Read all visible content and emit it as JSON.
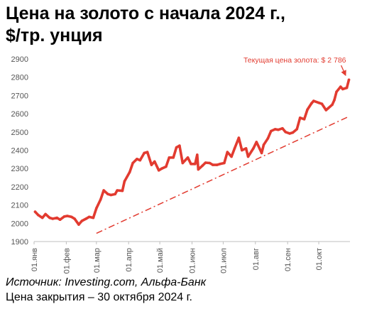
{
  "title_line1": "Цена на золото с начала 2024 г.,",
  "title_line2": "$/тр. унция",
  "source": "Источник: Investing.com, Альфа-Банк",
  "close_date": "Цена закрытия – 30 октября 2024 г.",
  "colors": {
    "line": "#e23b30",
    "trend": "#e23b30",
    "annotation": "#e23b30",
    "axis": "#555555"
  },
  "chart_data": {
    "type": "line",
    "title": "Цена на золото с начала 2024 г., $/тр. унция",
    "xlabel": "",
    "ylabel": "",
    "ylim": [
      1900,
      2900
    ],
    "yticks": [
      1900,
      2000,
      2100,
      2200,
      2300,
      2400,
      2500,
      2600,
      2700,
      2800,
      2900
    ],
    "xlim": [
      "2024-01-01",
      "2024-10-30"
    ],
    "xticks": [
      {
        "date": "2024-01-01",
        "label": "01.янв"
      },
      {
        "date": "2024-02-01",
        "label": "01.фев"
      },
      {
        "date": "2024-03-01",
        "label": "01.мар"
      },
      {
        "date": "2024-04-01",
        "label": "01.апр"
      },
      {
        "date": "2024-05-01",
        "label": "01.май"
      },
      {
        "date": "2024-06-01",
        "label": "01.июн"
      },
      {
        "date": "2024-07-01",
        "label": "01.июл"
      },
      {
        "date": "2024-08-01",
        "label": "01.авг"
      },
      {
        "date": "2024-09-01",
        "label": "01.сен"
      },
      {
        "date": "2024-10-01",
        "label": "01.окт"
      }
    ],
    "grid": false,
    "series": [
      {
        "name": "",
        "points": [
          [
            "2024-01-02",
            2063
          ],
          [
            "2024-01-05",
            2045
          ],
          [
            "2024-01-09",
            2030
          ],
          [
            "2024-01-12",
            2050
          ],
          [
            "2024-01-16",
            2030
          ],
          [
            "2024-01-19",
            2025
          ],
          [
            "2024-01-23",
            2030
          ],
          [
            "2024-01-26",
            2020
          ],
          [
            "2024-01-30",
            2037
          ],
          [
            "2024-02-02",
            2040
          ],
          [
            "2024-02-06",
            2035
          ],
          [
            "2024-02-09",
            2025
          ],
          [
            "2024-02-13",
            1993
          ],
          [
            "2024-02-16",
            2013
          ],
          [
            "2024-02-20",
            2025
          ],
          [
            "2024-02-23",
            2035
          ],
          [
            "2024-02-27",
            2030
          ],
          [
            "2024-03-01",
            2082
          ],
          [
            "2024-03-05",
            2130
          ],
          [
            "2024-03-08",
            2180
          ],
          [
            "2024-03-12",
            2160
          ],
          [
            "2024-03-15",
            2155
          ],
          [
            "2024-03-19",
            2160
          ],
          [
            "2024-03-21",
            2180
          ],
          [
            "2024-03-26",
            2178
          ],
          [
            "2024-03-28",
            2230
          ],
          [
            "2024-04-02",
            2280
          ],
          [
            "2024-04-05",
            2330
          ],
          [
            "2024-04-09",
            2352
          ],
          [
            "2024-04-12",
            2345
          ],
          [
            "2024-04-16",
            2385
          ],
          [
            "2024-04-19",
            2390
          ],
          [
            "2024-04-23",
            2320
          ],
          [
            "2024-04-26",
            2338
          ],
          [
            "2024-04-30",
            2290
          ],
          [
            "2024-05-03",
            2300
          ],
          [
            "2024-05-07",
            2310
          ],
          [
            "2024-05-10",
            2360
          ],
          [
            "2024-05-14",
            2360
          ],
          [
            "2024-05-17",
            2415
          ],
          [
            "2024-05-20",
            2425
          ],
          [
            "2024-05-23",
            2330
          ],
          [
            "2024-05-28",
            2360
          ],
          [
            "2024-05-31",
            2325
          ],
          [
            "2024-06-04",
            2325
          ],
          [
            "2024-06-06",
            2375
          ],
          [
            "2024-06-07",
            2295
          ],
          [
            "2024-06-11",
            2315
          ],
          [
            "2024-06-14",
            2332
          ],
          [
            "2024-06-18",
            2330
          ],
          [
            "2024-06-21",
            2320
          ],
          [
            "2024-06-25",
            2320
          ],
          [
            "2024-06-28",
            2325
          ],
          [
            "2024-07-02",
            2330
          ],
          [
            "2024-07-05",
            2390
          ],
          [
            "2024-07-09",
            2365
          ],
          [
            "2024-07-12",
            2410
          ],
          [
            "2024-07-16",
            2468
          ],
          [
            "2024-07-19",
            2400
          ],
          [
            "2024-07-23",
            2410
          ],
          [
            "2024-07-25",
            2365
          ],
          [
            "2024-07-30",
            2410
          ],
          [
            "2024-08-02",
            2445
          ],
          [
            "2024-08-05",
            2410
          ],
          [
            "2024-08-07",
            2385
          ],
          [
            "2024-08-09",
            2430
          ],
          [
            "2024-08-13",
            2465
          ],
          [
            "2024-08-16",
            2505
          ],
          [
            "2024-08-20",
            2515
          ],
          [
            "2024-08-23",
            2512
          ],
          [
            "2024-08-27",
            2520
          ],
          [
            "2024-08-30",
            2500
          ],
          [
            "2024-09-03",
            2492
          ],
          [
            "2024-09-06",
            2497
          ],
          [
            "2024-09-10",
            2516
          ],
          [
            "2024-09-13",
            2578
          ],
          [
            "2024-09-17",
            2570
          ],
          [
            "2024-09-20",
            2622
          ],
          [
            "2024-09-24",
            2657
          ],
          [
            "2024-09-26",
            2670
          ],
          [
            "2024-10-01",
            2660
          ],
          [
            "2024-10-04",
            2654
          ],
          [
            "2024-10-08",
            2620
          ],
          [
            "2024-10-10",
            2630
          ],
          [
            "2024-10-14",
            2650
          ],
          [
            "2024-10-16",
            2675
          ],
          [
            "2024-10-18",
            2720
          ],
          [
            "2024-10-22",
            2748
          ],
          [
            "2024-10-24",
            2735
          ],
          [
            "2024-10-28",
            2742
          ],
          [
            "2024-10-30",
            2786
          ]
        ]
      }
    ],
    "trendline": {
      "style": "dash-dot",
      "from": [
        "2024-03-01",
        1945
      ],
      "to": [
        "2024-10-30",
        2585
      ]
    },
    "annotations": [
      {
        "text": "Текущая цена золота: $ 2 786",
        "date": "2024-10-30",
        "value": 2786,
        "arrow": true
      }
    ]
  }
}
